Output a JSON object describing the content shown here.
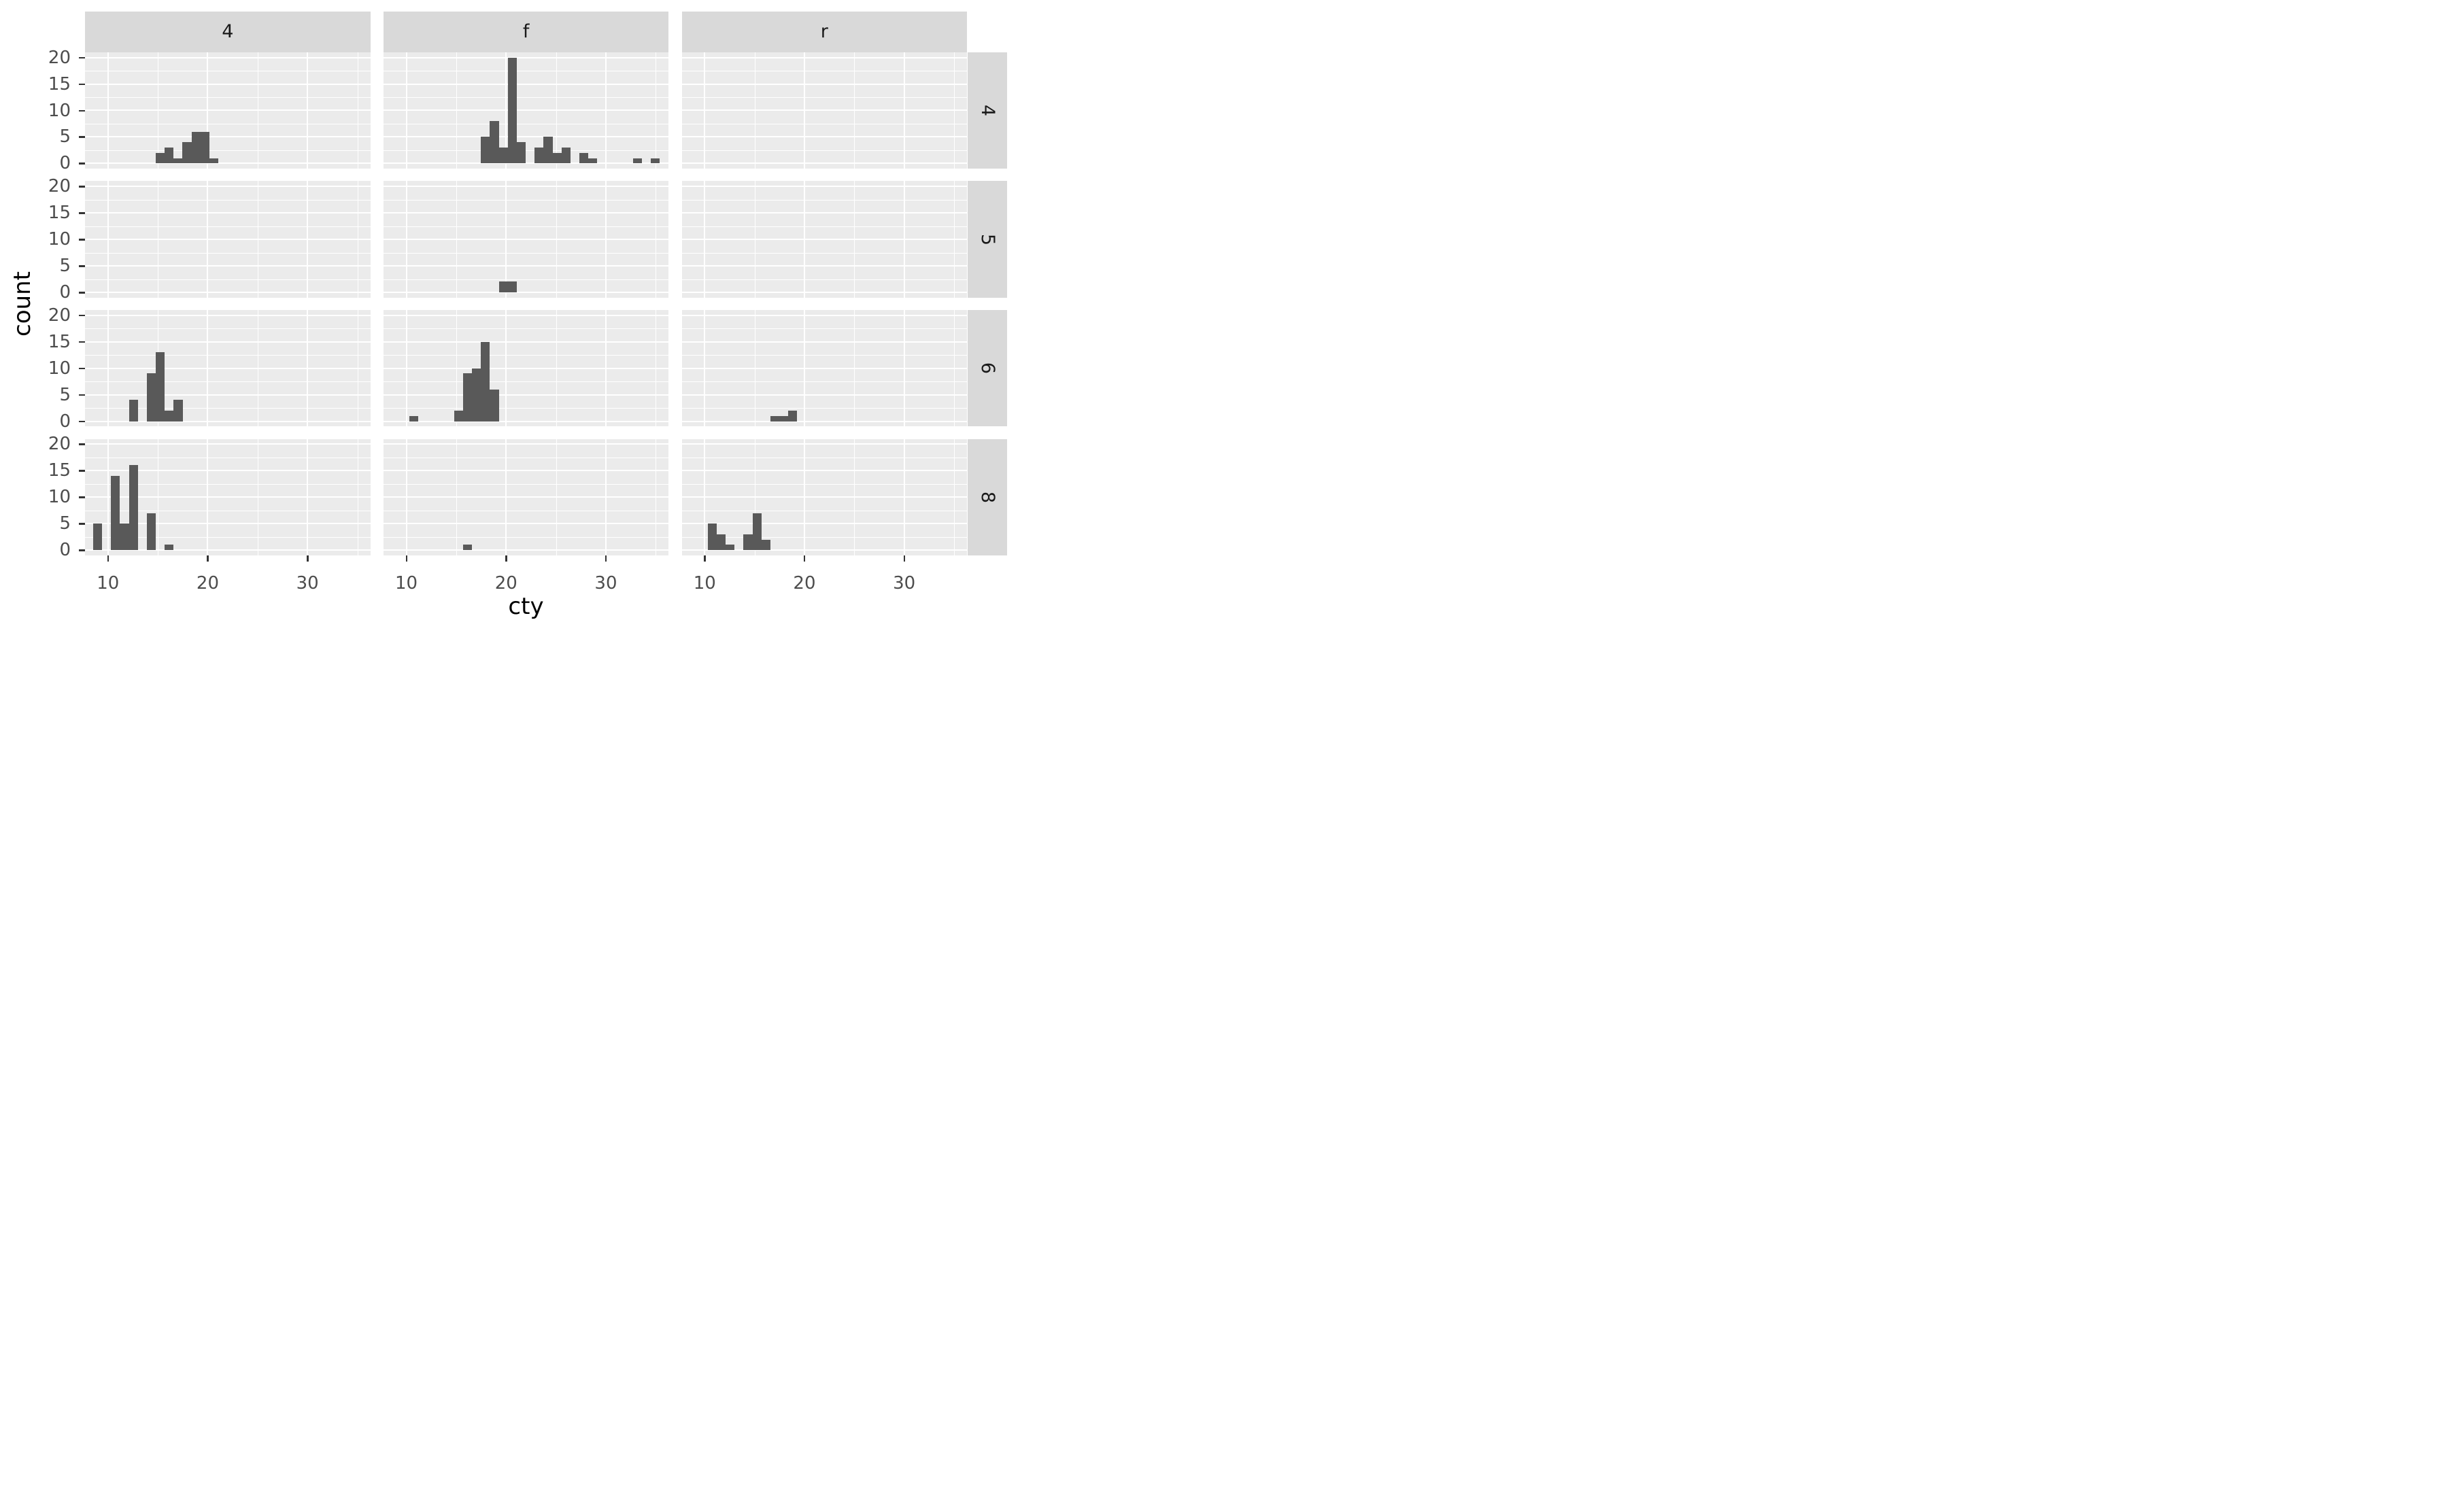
{
  "chart_data": {
    "type": "bar",
    "subtype": "faceted-histogram",
    "title": "",
    "xlabel": "cty",
    "ylabel": "count",
    "facet": {
      "cols": [
        "4",
        "f",
        "r"
      ],
      "rows": [
        "4",
        "5",
        "6",
        "8"
      ]
    },
    "x_ticks": [
      10,
      20,
      30
    ],
    "y_ticks": [
      20,
      15,
      10,
      5,
      0
    ],
    "x_range": [
      7.7,
      36.3
    ],
    "y_range": [
      -1,
      21
    ],
    "x_gridlines": {
      "major": [
        10,
        20,
        30
      ],
      "minor": [
        15,
        25,
        35
      ]
    },
    "y_gridlines": {
      "major": [
        0,
        5,
        10,
        15,
        20
      ],
      "minor": [
        2.5,
        7.5,
        12.5,
        17.5
      ]
    },
    "binwidth": 0.897,
    "legend_position": "none",
    "grid": true,
    "panels": [
      {
        "col": "4",
        "row": "4",
        "bars": [
          {
            "x": 14.79,
            "h": 2
          },
          {
            "x": 15.69,
            "h": 3
          },
          {
            "x": 16.59,
            "h": 1
          },
          {
            "x": 17.48,
            "h": 4
          },
          {
            "x": 18.38,
            "h": 6
          },
          {
            "x": 19.28,
            "h": 6
          },
          {
            "x": 20.17,
            "h": 1
          }
        ]
      },
      {
        "col": "f",
        "row": "4",
        "bars": [
          {
            "x": 17.48,
            "h": 5
          },
          {
            "x": 18.38,
            "h": 8
          },
          {
            "x": 19.28,
            "h": 3
          },
          {
            "x": 20.17,
            "h": 20
          },
          {
            "x": 21.07,
            "h": 4
          },
          {
            "x": 22.86,
            "h": 3
          },
          {
            "x": 23.76,
            "h": 5
          },
          {
            "x": 24.66,
            "h": 2
          },
          {
            "x": 25.55,
            "h": 3
          },
          {
            "x": 27.35,
            "h": 2
          },
          {
            "x": 28.24,
            "h": 1
          },
          {
            "x": 32.72,
            "h": 1
          },
          {
            "x": 34.52,
            "h": 1
          }
        ]
      },
      {
        "col": "r",
        "row": "4",
        "bars": []
      },
      {
        "col": "4",
        "row": "5",
        "bars": []
      },
      {
        "col": "f",
        "row": "5",
        "bars": [
          {
            "x": 19.28,
            "h": 2
          },
          {
            "x": 20.17,
            "h": 2
          }
        ]
      },
      {
        "col": "r",
        "row": "5",
        "bars": []
      },
      {
        "col": "4",
        "row": "6",
        "bars": [
          {
            "x": 12.1,
            "h": 4
          },
          {
            "x": 13.9,
            "h": 9
          },
          {
            "x": 14.79,
            "h": 13
          },
          {
            "x": 15.69,
            "h": 2
          },
          {
            "x": 16.59,
            "h": 4
          }
        ]
      },
      {
        "col": "f",
        "row": "6",
        "bars": [
          {
            "x": 10.31,
            "h": 1
          },
          {
            "x": 14.79,
            "h": 2
          },
          {
            "x": 15.69,
            "h": 9
          },
          {
            "x": 16.59,
            "h": 10
          },
          {
            "x": 17.48,
            "h": 15
          },
          {
            "x": 18.38,
            "h": 6
          }
        ]
      },
      {
        "col": "r",
        "row": "6",
        "bars": [
          {
            "x": 16.59,
            "h": 1
          },
          {
            "x": 17.48,
            "h": 1
          },
          {
            "x": 18.38,
            "h": 2
          }
        ]
      },
      {
        "col": "4",
        "row": "8",
        "bars": [
          {
            "x": 8.52,
            "h": 5
          },
          {
            "x": 10.31,
            "h": 14
          },
          {
            "x": 11.21,
            "h": 5
          },
          {
            "x": 12.1,
            "h": 16
          },
          {
            "x": 13.9,
            "h": 7
          },
          {
            "x": 15.69,
            "h": 1
          }
        ]
      },
      {
        "col": "f",
        "row": "8",
        "bars": [
          {
            "x": 15.69,
            "h": 1
          }
        ]
      },
      {
        "col": "r",
        "row": "8",
        "bars": [
          {
            "x": 10.31,
            "h": 5
          },
          {
            "x": 11.21,
            "h": 3
          },
          {
            "x": 12.1,
            "h": 1
          },
          {
            "x": 13.9,
            "h": 3
          },
          {
            "x": 14.79,
            "h": 7
          },
          {
            "x": 15.69,
            "h": 2
          }
        ]
      }
    ],
    "colors": {
      "bar_fill": "#595959",
      "panel_background": "#ebebeb",
      "strip_background": "#d9d9d9",
      "strip_text": "#1a1a1a",
      "gridline": "#ffffff",
      "axis_text": "#4d4d4d",
      "tick_mark": "#333333",
      "axis_title": "#000000",
      "figure_background": "#ffffff"
    }
  }
}
